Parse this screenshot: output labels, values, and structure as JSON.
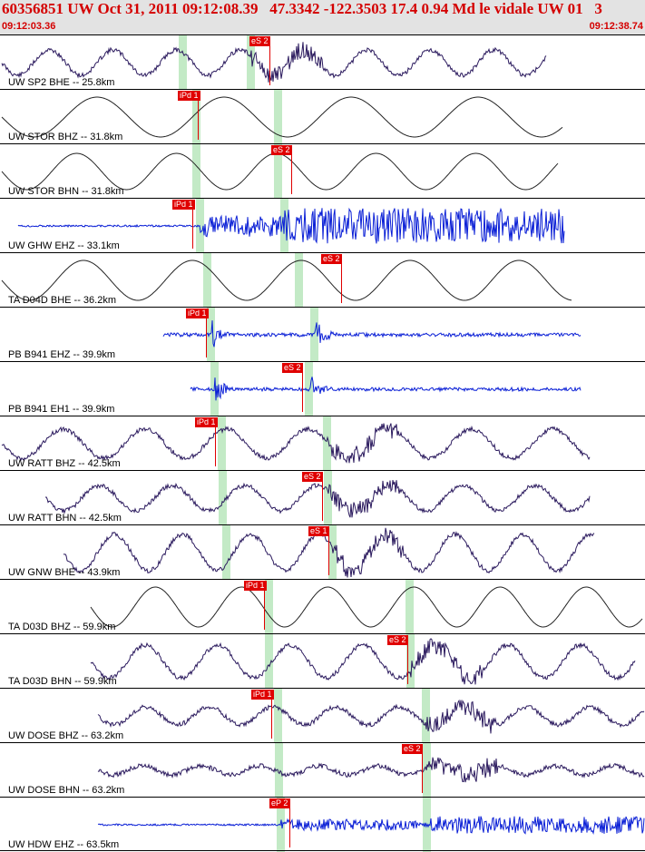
{
  "header": {
    "event_title": "60356851 UW Oct 31, 2011 09:12:08.39   47.3342 -122.3503 17.4 0.94 Md le vidale UW 01   3",
    "start_time": "09:12:03.36",
    "end_time": "09:12:38.74"
  },
  "colors": {
    "title_red": "#d40000",
    "header_bg": "#e3e3e3",
    "trace_purple": "#2b1a5e",
    "trace_blue": "#0a1fd6",
    "trace_black": "#222222",
    "pick_red": "#e00000",
    "pick_window_green": "#bde8c0"
  },
  "traces": [
    {
      "label": "UW SP2 BHE -- 25.8km",
      "pick": "eS 2"
    },
    {
      "label": "UW STOR BHZ -- 31.8km",
      "pick": "iPd 1"
    },
    {
      "label": "UW STOR BHN -- 31.8km",
      "pick": "eS 2"
    },
    {
      "label": "UW GHW EHZ -- 33.1km",
      "pick": "iPd 1"
    },
    {
      "label": "TA D04D BHE -- 36.2km",
      "pick": "eS 2"
    },
    {
      "label": "PB B941 EHZ -- 39.9km",
      "pick": "iPd 1"
    },
    {
      "label": "PB B941 EH1 -- 39.9km",
      "pick": "eS 2"
    },
    {
      "label": "UW RATT BHZ -- 42.5km",
      "pick": "iPd 1"
    },
    {
      "label": "UW RATT BHN -- 42.5km",
      "pick": "eS 2"
    },
    {
      "label": "UW GNW BHE -- 43.9km",
      "pick": "eS 1"
    },
    {
      "label": "TA D03D BHZ -- 59.9km",
      "pick": "iPd 1"
    },
    {
      "label": "TA D03D BHN -- 59.9km",
      "pick": "eS 2"
    },
    {
      "label": "UW DOSE BHZ -- 63.2km",
      "pick": "iPd 1"
    },
    {
      "label": "UW DOSE BHN -- 63.2km",
      "pick": "eS 2"
    },
    {
      "label": "UW HDW EHZ -- 63.5km",
      "pick": "eP 2"
    }
  ]
}
